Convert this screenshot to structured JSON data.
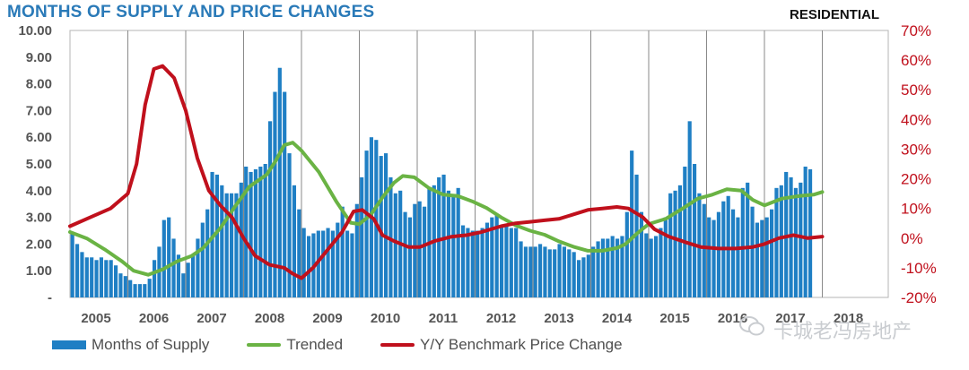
{
  "header": {
    "title": "MONTHS OF SUPPLY AND PRICE CHANGES",
    "badge": "RESIDENTIAL"
  },
  "watermark": {
    "text": "卡城老冯房地产"
  },
  "colors": {
    "bars": "#1f7fc4",
    "trended": "#6ab344",
    "price_change": "#c0101c",
    "title": "#2a7ab8",
    "grid": "#8a8a8a",
    "left_axis_text": "#555555",
    "right_axis_text": "#c0101c"
  },
  "chart_data": {
    "type": "bar+line",
    "title": "MONTHS OF SUPPLY AND PRICE CHANGES",
    "subtitle": "RESIDENTIAL",
    "x_label": "",
    "years": [
      "2005",
      "2006",
      "2007",
      "2008",
      "2009",
      "2010",
      "2011",
      "2012",
      "2013",
      "2014",
      "2015",
      "2016",
      "2017",
      "2018"
    ],
    "bar_start": "2005-01",
    "y_left": {
      "min": 0,
      "max": 10,
      "ticks": [
        "-",
        "1.00",
        "2.00",
        "3.00",
        "4.00",
        "5.00",
        "6.00",
        "7.00",
        "8.00",
        "9.00",
        "10.00"
      ]
    },
    "y_right": {
      "min": -20,
      "max": 70,
      "ticks": [
        "-20%",
        "-10%",
        "0%",
        "10%",
        "20%",
        "30%",
        "40%",
        "50%",
        "60%",
        "70%"
      ]
    },
    "legend": {
      "bars": "Months of Supply",
      "trended": "Trended",
      "price_change": "Y/Y Benchmark Price Change"
    },
    "series": [
      {
        "name": "Months of Supply",
        "kind": "bar",
        "axis": "left",
        "values": [
          2.4,
          2.0,
          1.7,
          1.5,
          1.5,
          1.4,
          1.5,
          1.4,
          1.4,
          1.2,
          0.9,
          0.8,
          0.65,
          0.5,
          0.5,
          0.5,
          0.7,
          1.4,
          1.9,
          2.9,
          3.0,
          2.2,
          1.6,
          0.9,
          1.3,
          1.6,
          2.2,
          2.8,
          3.3,
          4.7,
          4.6,
          4.2,
          3.9,
          3.9,
          3.9,
          4.3,
          4.9,
          4.7,
          4.8,
          4.9,
          5.0,
          6.6,
          7.7,
          8.6,
          7.7,
          5.4,
          4.2,
          3.3,
          2.6,
          2.3,
          2.4,
          2.5,
          2.5,
          2.6,
          2.5,
          2.8,
          3.4,
          2.5,
          2.4,
          3.5,
          4.5,
          5.5,
          6.0,
          5.9,
          5.3,
          5.4,
          4.5,
          3.9,
          4.0,
          3.2,
          3.0,
          3.5,
          3.6,
          3.4,
          4.1,
          4.2,
          4.5,
          4.6,
          4.0,
          3.8,
          4.1,
          2.7,
          2.6,
          2.5,
          2.5,
          2.6,
          2.8,
          3.0,
          3.1,
          2.7,
          2.7,
          2.6,
          2.6,
          2.1,
          1.9,
          1.9,
          1.9,
          2.0,
          1.9,
          1.8,
          1.8,
          2.0,
          1.9,
          1.8,
          1.7,
          1.4,
          1.5,
          1.6,
          1.9,
          2.1,
          2.2,
          2.2,
          2.3,
          2.2,
          2.3,
          3.2,
          5.5,
          4.6,
          3.2,
          2.4,
          2.2,
          2.3,
          2.6,
          3.0,
          3.9,
          4.0,
          4.2,
          4.9,
          6.6,
          5.0,
          3.9,
          3.5,
          3.0,
          2.9,
          3.2,
          3.6,
          3.8,
          3.3,
          3.0,
          4.1,
          4.3,
          3.4,
          2.8,
          2.9,
          3.0,
          3.3,
          4.1,
          4.2,
          4.7,
          4.5,
          4.1,
          4.3,
          4.9,
          4.8
        ]
      },
      {
        "name": "Trended",
        "kind": "line",
        "axis": "left",
        "points": [
          [
            2005.0,
            2.45
          ],
          [
            2005.3,
            2.2
          ],
          [
            2005.6,
            1.8
          ],
          [
            2005.9,
            1.35
          ],
          [
            2006.1,
            1.0
          ],
          [
            2006.35,
            0.85
          ],
          [
            2006.6,
            1.05
          ],
          [
            2006.85,
            1.35
          ],
          [
            2007.1,
            1.55
          ],
          [
            2007.3,
            1.85
          ],
          [
            2007.6,
            2.6
          ],
          [
            2007.85,
            3.4
          ],
          [
            2008.1,
            4.15
          ],
          [
            2008.4,
            4.6
          ],
          [
            2008.55,
            5.1
          ],
          [
            2008.7,
            5.7
          ],
          [
            2008.85,
            5.8
          ],
          [
            2009.0,
            5.5
          ],
          [
            2009.3,
            4.7
          ],
          [
            2009.6,
            3.6
          ],
          [
            2009.85,
            2.8
          ],
          [
            2010.0,
            2.75
          ],
          [
            2010.2,
            3.1
          ],
          [
            2010.4,
            3.75
          ],
          [
            2010.6,
            4.3
          ],
          [
            2010.75,
            4.55
          ],
          [
            2010.95,
            4.5
          ],
          [
            2011.2,
            4.1
          ],
          [
            2011.45,
            3.85
          ],
          [
            2011.7,
            3.8
          ],
          [
            2011.95,
            3.6
          ],
          [
            2012.2,
            3.35
          ],
          [
            2012.45,
            3.0
          ],
          [
            2012.7,
            2.7
          ],
          [
            2012.95,
            2.5
          ],
          [
            2013.2,
            2.35
          ],
          [
            2013.45,
            2.1
          ],
          [
            2013.7,
            1.9
          ],
          [
            2013.95,
            1.75
          ],
          [
            2014.2,
            1.75
          ],
          [
            2014.45,
            1.85
          ],
          [
            2014.6,
            2.0
          ],
          [
            2014.8,
            2.4
          ],
          [
            2015.0,
            2.75
          ],
          [
            2015.3,
            2.95
          ],
          [
            2015.6,
            3.35
          ],
          [
            2015.85,
            3.7
          ],
          [
            2016.1,
            3.85
          ],
          [
            2016.35,
            4.05
          ],
          [
            2016.6,
            4.0
          ],
          [
            2016.8,
            3.65
          ],
          [
            2017.0,
            3.45
          ],
          [
            2017.3,
            3.7
          ],
          [
            2017.6,
            3.8
          ],
          [
            2017.85,
            3.85
          ],
          [
            2018.0,
            3.95
          ]
        ]
      },
      {
        "name": "Y/Y Benchmark Price Change",
        "kind": "line",
        "axis": "right",
        "points": [
          [
            2005.0,
            4.0
          ],
          [
            2005.35,
            7.0
          ],
          [
            2005.7,
            10.0
          ],
          [
            2006.0,
            15.0
          ],
          [
            2006.15,
            25.0
          ],
          [
            2006.3,
            45.0
          ],
          [
            2006.45,
            57.0
          ],
          [
            2006.6,
            58.0
          ],
          [
            2006.8,
            54.0
          ],
          [
            2007.0,
            43.0
          ],
          [
            2007.2,
            27.0
          ],
          [
            2007.4,
            16.0
          ],
          [
            2007.6,
            11.0
          ],
          [
            2007.8,
            7.0
          ],
          [
            2008.0,
            0.0
          ],
          [
            2008.2,
            -6.0
          ],
          [
            2008.45,
            -9.0
          ],
          [
            2008.7,
            -10.0
          ],
          [
            2008.85,
            -12.0
          ],
          [
            2009.0,
            -13.5
          ],
          [
            2009.2,
            -10.0
          ],
          [
            2009.45,
            -4.0
          ],
          [
            2009.7,
            2.0
          ],
          [
            2009.9,
            9.0
          ],
          [
            2010.05,
            9.5
          ],
          [
            2010.25,
            6.5
          ],
          [
            2010.4,
            1.0
          ],
          [
            2010.6,
            -1.0
          ],
          [
            2010.85,
            -3.0
          ],
          [
            2011.05,
            -3.0
          ],
          [
            2011.3,
            -1.0
          ],
          [
            2011.6,
            0.5
          ],
          [
            2011.85,
            1.0
          ],
          [
            2012.1,
            2.0
          ],
          [
            2012.45,
            4.0
          ],
          [
            2012.7,
            5.0
          ],
          [
            2012.95,
            5.5
          ],
          [
            2013.2,
            6.0
          ],
          [
            2013.45,
            6.5
          ],
          [
            2013.7,
            8.0
          ],
          [
            2013.95,
            9.5
          ],
          [
            2014.2,
            10.0
          ],
          [
            2014.45,
            10.5
          ],
          [
            2014.65,
            10.0
          ],
          [
            2014.9,
            7.0
          ],
          [
            2015.1,
            3.0
          ],
          [
            2015.35,
            0.5
          ],
          [
            2015.65,
            -1.5
          ],
          [
            2015.9,
            -3.0
          ],
          [
            2016.2,
            -3.5
          ],
          [
            2016.5,
            -3.5
          ],
          [
            2016.8,
            -3.0
          ],
          [
            2017.0,
            -2.0
          ],
          [
            2017.25,
            0.0
          ],
          [
            2017.5,
            1.0
          ],
          [
            2017.75,
            0.0
          ],
          [
            2018.0,
            0.5
          ]
        ]
      }
    ]
  }
}
